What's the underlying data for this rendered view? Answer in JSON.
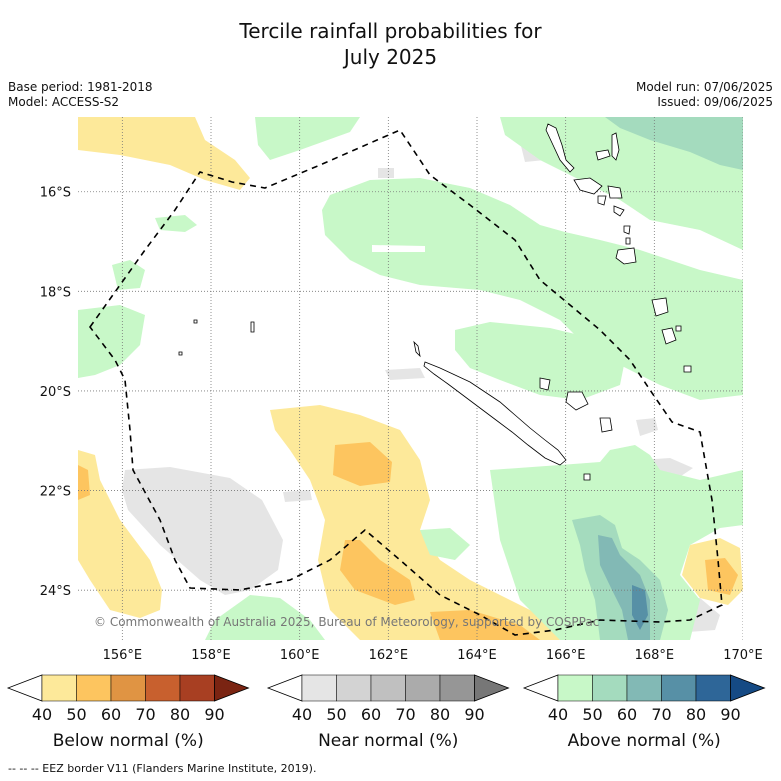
{
  "title_line1": "Tercile rainfall probabilities for",
  "title_line2": "July 2025",
  "base_period": "Base period: 1981-2018",
  "model": "Model: ACCESS-S2",
  "model_run": "Model run: 07/06/2025",
  "issued": "Issued: 09/06/2025",
  "copyright": "© Commonwealth of Australia 2025, Bureau of Meteorology, supported by COSPPac",
  "map": {
    "lon_ticks": [
      "156°E",
      "158°E",
      "160°E",
      "162°E",
      "164°E",
      "166°E",
      "168°E",
      "170°E"
    ],
    "lat_ticks": [
      "16°S",
      "18°S",
      "20°S",
      "22°S",
      "24°S"
    ],
    "lon_range": [
      155.0,
      170.0
    ],
    "lat_range": [
      -14.5,
      -25.0
    ],
    "grid": true
  },
  "colorbars": [
    {
      "name": "below",
      "label": "Below normal (%)",
      "ticks": [
        "40",
        "50",
        "60",
        "70",
        "80",
        "90"
      ],
      "colors": [
        "#ffffff",
        "#fde99a",
        "#fdc55f",
        "#e09443",
        "#c8602e",
        "#a83f22",
        "#7a2412"
      ]
    },
    {
      "name": "near",
      "label": "Near normal (%)",
      "ticks": [
        "40",
        "50",
        "60",
        "70",
        "80",
        "90"
      ],
      "colors": [
        "#ffffff",
        "#e5e5e5",
        "#d3d3d3",
        "#c0c0c0",
        "#ababab",
        "#969696",
        "#777777"
      ]
    },
    {
      "name": "above",
      "label": "Above normal (%)",
      "ticks": [
        "40",
        "50",
        "60",
        "70",
        "80",
        "90"
      ],
      "colors": [
        "#ffffff",
        "#c8f8c8",
        "#a4dbbe",
        "#82b9b5",
        "#5790a6",
        "#2e6698",
        "#154a84"
      ]
    }
  ],
  "footnote": "--  --  -- EEZ border V11 (Flanders Marine Institute, 2019)."
}
